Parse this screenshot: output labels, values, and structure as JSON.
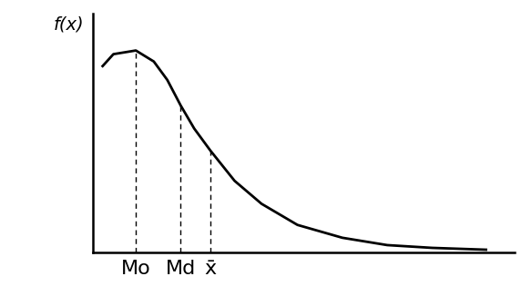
{
  "chart_data": {
    "type": "line",
    "y_label": "f(x)",
    "x": [
      0.22,
      0.46,
      0.96,
      1.36,
      1.66,
      1.96,
      2.26,
      2.62,
      3.16,
      3.76,
      4.56,
      5.56,
      6.56,
      7.56,
      8.76
    ],
    "values": [
      4.06,
      4.32,
      4.4,
      4.16,
      3.76,
      3.2,
      2.7,
      2.22,
      1.56,
      1.06,
      0.6,
      0.32,
      0.16,
      0.1,
      0.06
    ],
    "color": "#000000",
    "xlim": [
      0,
      9.4
    ],
    "ylim": [
      0,
      5.2
    ],
    "xticks": [
      {
        "value": 0.96,
        "label": "Mo"
      },
      {
        "value": 1.96,
        "label": "Md"
      },
      {
        "value": 2.62,
        "label": "x̄"
      }
    ],
    "yticks": [],
    "grid": false
  }
}
